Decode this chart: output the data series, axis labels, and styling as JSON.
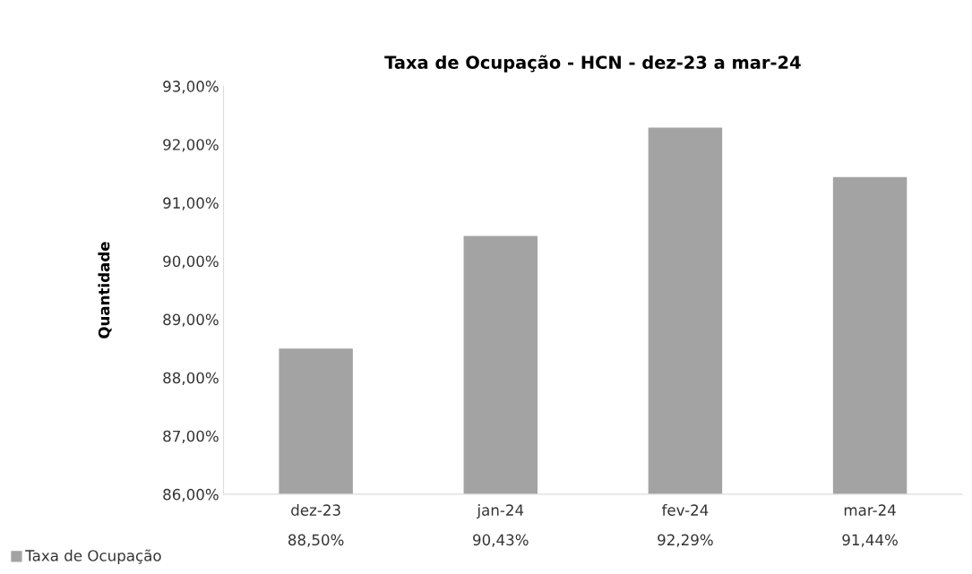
{
  "chart_data": {
    "type": "bar",
    "title": "Taxa de Ocupação - HCN - dez-23 a mar-24",
    "ylabel": "Quantidade",
    "categories": [
      "dez-23",
      "jan-24",
      "fev-24",
      "mar-24"
    ],
    "series": [
      {
        "name": "Taxa de Ocupação",
        "color": "#a3a3a3",
        "values": [
          88.5,
          90.43,
          92.29,
          91.44
        ],
        "value_labels": [
          "88,50%",
          "90,43%",
          "92,29%",
          "91,44%"
        ]
      }
    ],
    "ylim": [
      86,
      93
    ],
    "yticks": [
      {
        "value": 86,
        "label": "86,00%"
      },
      {
        "value": 87,
        "label": "87,00%"
      },
      {
        "value": 88,
        "label": "88,00%"
      },
      {
        "value": 89,
        "label": "89,00%"
      },
      {
        "value": 90,
        "label": "90,00%"
      },
      {
        "value": 91,
        "label": "91,00%"
      },
      {
        "value": 92,
        "label": "92,00%"
      },
      {
        "value": 93,
        "label": "93,00%"
      }
    ],
    "grid": false,
    "legend": "bottom left"
  }
}
